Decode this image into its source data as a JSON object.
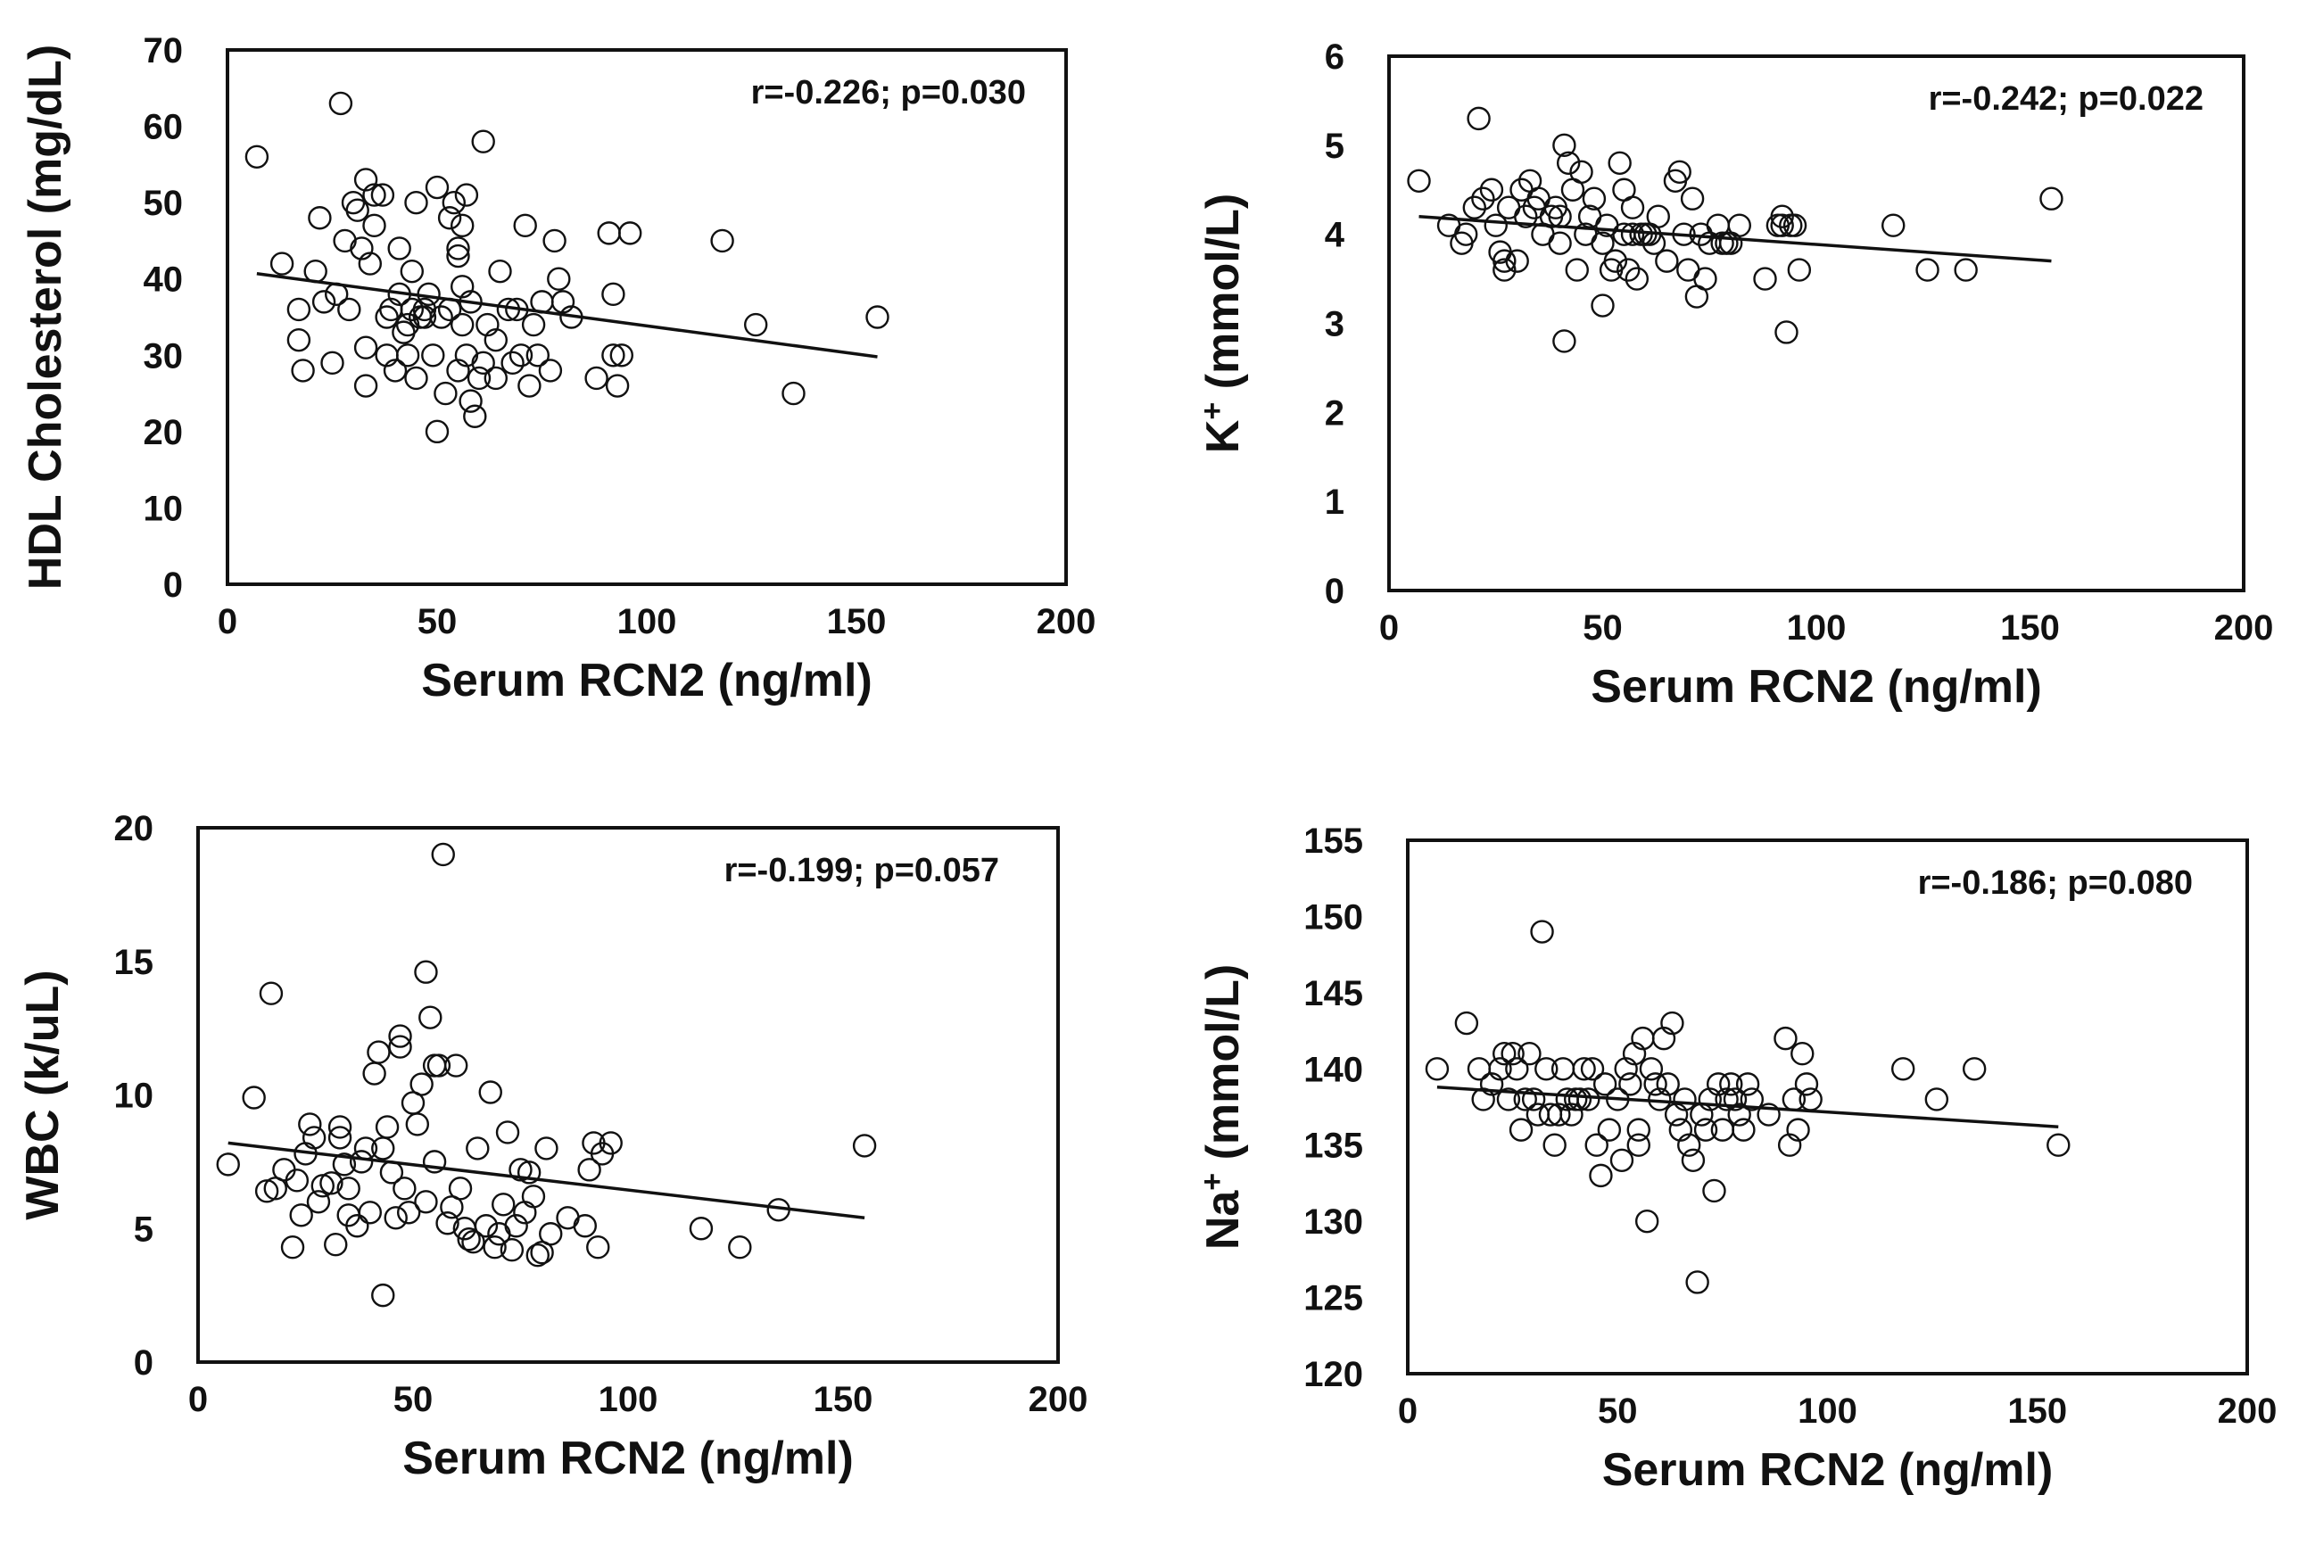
{
  "chart_data": [
    {
      "id": "hdl",
      "type": "scatter",
      "title": "",
      "xlabel": "Serum RCN2 (ng/ml)",
      "ylabel": "HDL Cholesterol (mg/dL)",
      "ylabel_base": "HDL Cholesterol (mg/dL)",
      "xlim": [
        0,
        200
      ],
      "ylim": [
        0,
        70
      ],
      "xticks": [
        0,
        50,
        100,
        150,
        200
      ],
      "yticks": [
        0,
        10,
        20,
        30,
        40,
        50,
        60,
        70
      ],
      "annotation": "r=-0.226; p=0.030",
      "grid": false,
      "legend": "none",
      "trendline": [
        [
          7,
          40.7
        ],
        [
          155,
          29.8
        ]
      ],
      "x": [
        7,
        13,
        17,
        17,
        18,
        21,
        22,
        23,
        25,
        26,
        27,
        28,
        29,
        30,
        31,
        32,
        33,
        33,
        33,
        34,
        35,
        35,
        37,
        38,
        38,
        39,
        40,
        41,
        41,
        42,
        43,
        43,
        44,
        44,
        45,
        45,
        46,
        47,
        47,
        48,
        49,
        50,
        50,
        51,
        52,
        53,
        53,
        54,
        55,
        55,
        55,
        56,
        56,
        56,
        57,
        57,
        58,
        58,
        59,
        60,
        61,
        61,
        62,
        64,
        64,
        65,
        67,
        68,
        69,
        70,
        71,
        72,
        73,
        74,
        75,
        77,
        78,
        79,
        80,
        82,
        88,
        91,
        92,
        92,
        93,
        94,
        96,
        118,
        126,
        135,
        155
      ],
      "y": [
        56,
        42,
        36,
        32,
        28,
        41,
        48,
        37,
        29,
        38,
        63,
        45,
        36,
        50,
        49,
        44,
        31,
        26,
        53,
        42,
        47,
        51,
        51,
        30,
        35,
        36,
        28,
        38,
        44,
        33,
        34,
        30,
        36,
        41,
        27,
        50,
        35,
        35,
        36,
        38,
        30,
        52,
        20,
        35,
        25,
        48,
        36,
        50,
        44,
        43,
        28,
        47,
        39,
        34,
        30,
        51,
        24,
        37,
        22,
        27,
        58,
        29,
        34,
        32,
        27,
        41,
        36,
        29,
        36,
        30,
        47,
        26,
        34,
        30,
        37,
        28,
        45,
        40,
        37,
        35,
        27,
        46,
        38,
        30,
        26,
        30,
        46,
        45,
        34,
        25,
        35
      ]
    },
    {
      "id": "potassium",
      "type": "scatter",
      "title": "",
      "xlabel": "Serum RCN2 (ng/ml)",
      "ylabel": "K+ (mmol/L)",
      "ylabel_base": "K",
      "ylabel_sup": "+",
      "ylabel_rest": " (mmol/L)",
      "xlim": [
        0,
        200
      ],
      "ylim": [
        0,
        6
      ],
      "xticks": [
        0,
        50,
        100,
        150,
        200
      ],
      "yticks": [
        0,
        1,
        2,
        3,
        4,
        5,
        6
      ],
      "annotation": "r=-0.242; p=0.022",
      "grid": false,
      "legend": "none",
      "trendline": [
        [
          7,
          4.2
        ],
        [
          155,
          3.7
        ]
      ],
      "x": [
        7,
        14,
        17,
        18,
        20,
        21,
        22,
        24,
        25,
        26,
        27,
        27,
        28,
        30,
        31,
        32,
        33,
        34,
        35,
        36,
        38,
        39,
        40,
        40,
        41,
        41,
        42,
        43,
        44,
        45,
        46,
        47,
        48,
        50,
        50,
        51,
        52,
        53,
        54,
        55,
        55,
        56,
        57,
        57,
        58,
        59,
        60,
        61,
        62,
        63,
        65,
        67,
        68,
        69,
        70,
        71,
        72,
        73,
        74,
        75,
        77,
        78,
        79,
        80,
        82,
        88,
        91,
        92,
        92,
        93,
        94,
        95,
        96,
        118,
        126,
        135,
        155
      ],
      "y": [
        4.6,
        4.1,
        3.9,
        4.0,
        4.3,
        5.3,
        4.4,
        4.5,
        4.1,
        3.8,
        3.6,
        3.7,
        4.3,
        3.7,
        4.5,
        4.2,
        4.6,
        4.3,
        4.4,
        4.0,
        4.2,
        4.3,
        3.9,
        4.2,
        5.0,
        2.8,
        4.8,
        4.5,
        3.6,
        4.7,
        4.0,
        4.2,
        4.4,
        3.9,
        3.2,
        4.1,
        3.6,
        3.7,
        4.8,
        4.0,
        4.5,
        3.6,
        4.3,
        4.0,
        3.5,
        4.0,
        4.0,
        4.0,
        3.9,
        4.2,
        3.7,
        4.6,
        4.7,
        4.0,
        3.6,
        4.4,
        3.3,
        4.0,
        3.5,
        3.9,
        4.1,
        3.9,
        3.9,
        3.9,
        4.1,
        3.5,
        4.1,
        4.1,
        4.2,
        2.9,
        4.1,
        4.1,
        3.6,
        4.1,
        3.6,
        3.6,
        4.4
      ]
    },
    {
      "id": "wbc",
      "type": "scatter",
      "title": "",
      "xlabel": "Serum RCN2 (ng/ml)",
      "ylabel": "WBC (k/uL)",
      "ylabel_base": "WBC (k/uL)",
      "xlim": [
        0,
        200
      ],
      "ylim": [
        0,
        20
      ],
      "xticks": [
        0,
        50,
        100,
        150,
        200
      ],
      "yticks": [
        0,
        5,
        10,
        15,
        20
      ],
      "annotation": "r=-0.199; p=0.057",
      "grid": false,
      "legend": "none",
      "trendline": [
        [
          7,
          8.2
        ],
        [
          155,
          5.4
        ]
      ],
      "x": [
        7,
        13,
        16,
        17,
        18,
        20,
        22,
        23,
        24,
        25,
        26,
        27,
        28,
        29,
        31,
        32,
        33,
        33,
        34,
        35,
        35,
        37,
        38,
        39,
        40,
        41,
        42,
        43,
        43,
        44,
        45,
        46,
        47,
        47,
        48,
        49,
        50,
        51,
        52,
        53,
        53,
        54,
        55,
        55,
        56,
        57,
        58,
        59,
        60,
        61,
        62,
        63,
        64,
        65,
        67,
        68,
        69,
        70,
        71,
        72,
        73,
        74,
        75,
        76,
        77,
        78,
        79,
        80,
        81,
        82,
        86,
        90,
        91,
        92,
        93,
        94,
        96,
        117,
        126,
        135,
        155
      ],
      "y": [
        7.4,
        9.9,
        6.4,
        13.8,
        6.5,
        7.2,
        4.3,
        6.8,
        5.5,
        7.8,
        8.9,
        8.4,
        6.0,
        6.6,
        6.7,
        4.4,
        8.8,
        8.4,
        7.4,
        6.5,
        5.5,
        5.1,
        7.5,
        8.0,
        5.6,
        10.8,
        11.6,
        8.0,
        2.5,
        8.8,
        7.1,
        5.4,
        11.8,
        12.2,
        6.5,
        5.6,
        9.7,
        8.9,
        10.4,
        14.6,
        6.0,
        12.9,
        11.1,
        7.5,
        11.1,
        19.0,
        5.2,
        5.8,
        11.1,
        6.5,
        5.0,
        4.6,
        4.5,
        8.0,
        5.1,
        10.1,
        4.3,
        4.8,
        5.9,
        8.6,
        4.2,
        5.1,
        7.2,
        5.6,
        7.1,
        6.2,
        4.0,
        4.1,
        8.0,
        4.8,
        5.4,
        5.1,
        7.2,
        8.2,
        4.3,
        7.8,
        8.2,
        5.0,
        4.3,
        5.7,
        8.1
      ]
    },
    {
      "id": "sodium",
      "type": "scatter",
      "title": "",
      "xlabel": "Serum RCN2 (ng/ml)",
      "ylabel": "Na+ (mmol/L)",
      "ylabel_base": "Na",
      "ylabel_sup": "+",
      "ylabel_rest": " (mmol/L)",
      "xlim": [
        0,
        200
      ],
      "ylim": [
        120,
        155
      ],
      "xticks": [
        0,
        50,
        100,
        150,
        200
      ],
      "yticks": [
        120,
        125,
        130,
        135,
        140,
        145,
        150,
        155
      ],
      "annotation": "r=-0.186; p=0.080",
      "grid": false,
      "legend": "none",
      "trendline": [
        [
          7,
          138.8
        ],
        [
          155,
          136.2
        ]
      ],
      "x": [
        7,
        14,
        17,
        18,
        20,
        22,
        23,
        24,
        25,
        26,
        27,
        28,
        29,
        30,
        31,
        32,
        33,
        34,
        35,
        36,
        37,
        38,
        39,
        40,
        41,
        42,
        43,
        44,
        45,
        46,
        47,
        48,
        50,
        51,
        52,
        53,
        54,
        55,
        55,
        56,
        57,
        58,
        59,
        60,
        61,
        62,
        63,
        64,
        65,
        66,
        67,
        68,
        69,
        70,
        71,
        72,
        73,
        74,
        75,
        76,
        77,
        78,
        79,
        80,
        81,
        82,
        86,
        90,
        91,
        92,
        93,
        94,
        95,
        96,
        118,
        126,
        135,
        155
      ],
      "y": [
        140,
        143,
        140,
        138,
        139,
        140,
        141,
        138,
        141,
        140,
        136,
        138,
        141,
        138,
        137,
        149,
        140,
        137,
        135,
        137,
        140,
        138,
        137,
        138,
        138,
        140,
        138,
        140,
        135,
        133,
        139,
        136,
        138,
        134,
        140,
        139,
        141,
        135,
        136,
        142,
        130,
        140,
        139,
        138,
        142,
        139,
        143,
        137,
        136,
        138,
        135,
        134,
        126,
        137,
        136,
        138,
        132,
        139,
        136,
        138,
        139,
        138,
        137,
        136,
        139,
        138,
        137,
        142,
        135,
        138,
        136,
        141,
        139,
        138,
        140,
        138,
        140,
        135
      ]
    }
  ]
}
